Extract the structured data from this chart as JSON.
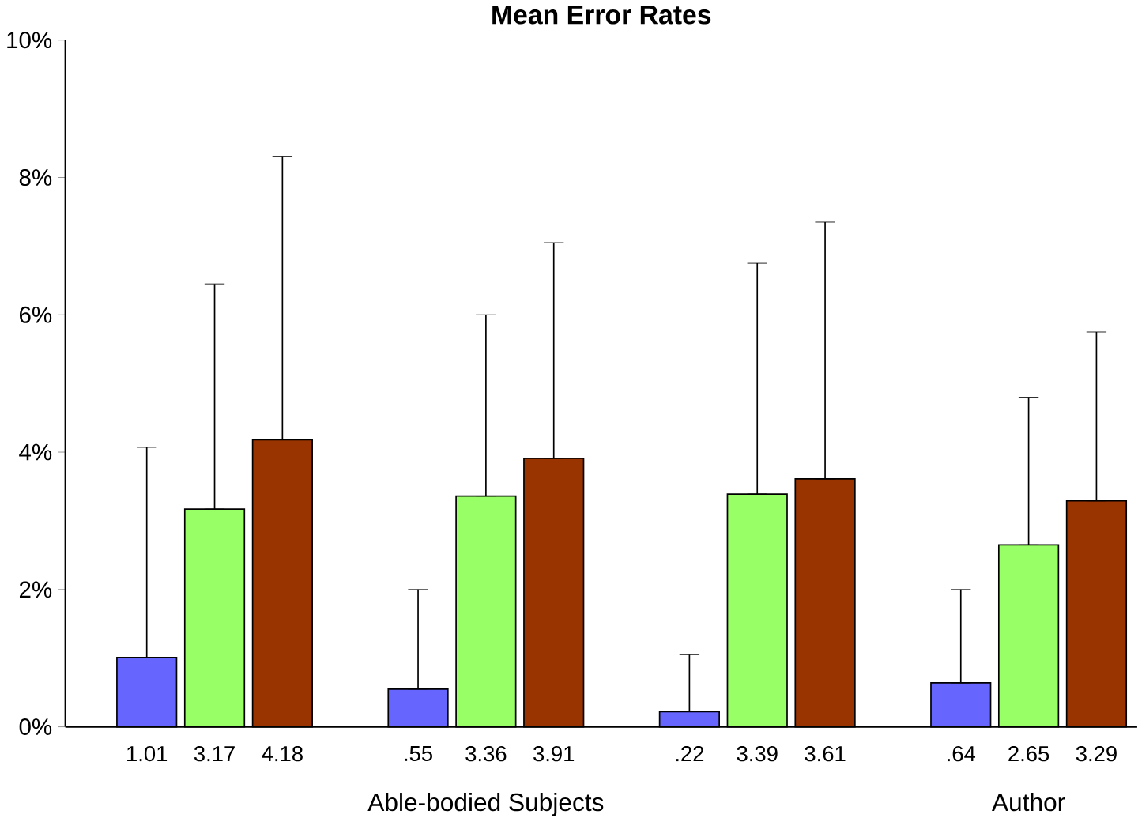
{
  "chart_data": {
    "type": "bar",
    "title": "Mean Error Rates",
    "categories": [
      null,
      null,
      null,
      null
    ],
    "series": [
      {
        "color": "#6666ff",
        "values": [
          1.01,
          0.55,
          0.22,
          0.64
        ],
        "value_labels": [
          "1.01",
          ".55",
          ".22",
          ".64"
        ],
        "errors": [
          [
            1.01,
            4.07
          ],
          [
            0.55,
            2.0
          ],
          [
            0.22,
            1.05
          ],
          [
            0.64,
            2.0
          ]
        ]
      },
      {
        "color": "#99ff66",
        "values": [
          3.17,
          3.36,
          3.39,
          2.65
        ],
        "value_labels": [
          "3.17",
          "3.36",
          "3.39",
          "2.65"
        ],
        "errors": [
          [
            3.17,
            6.45
          ],
          [
            3.36,
            6.0
          ],
          [
            3.39,
            6.75
          ],
          [
            2.65,
            4.8
          ]
        ]
      },
      {
        "color": "#993300",
        "values": [
          4.18,
          3.91,
          3.61,
          3.29
        ],
        "value_labels": [
          "4.18",
          "3.91",
          "3.61",
          "3.29"
        ],
        "errors": [
          [
            4.18,
            8.3
          ],
          [
            3.91,
            7.05
          ],
          [
            3.61,
            7.35
          ],
          [
            3.29,
            5.75
          ]
        ]
      }
    ],
    "ylim": [
      0,
      10
    ],
    "yticks": [
      {
        "value": 0,
        "label": "0%"
      },
      {
        "value": 2,
        "label": "2%"
      },
      {
        "value": 4,
        "label": "4%"
      },
      {
        "value": 6,
        "label": "6%"
      },
      {
        "value": 8,
        "label": "8%"
      },
      {
        "value": 10,
        "label": "10%"
      }
    ],
    "annotations": [
      "Able-bodied Subjects",
      "Author"
    ],
    "grid": false
  }
}
